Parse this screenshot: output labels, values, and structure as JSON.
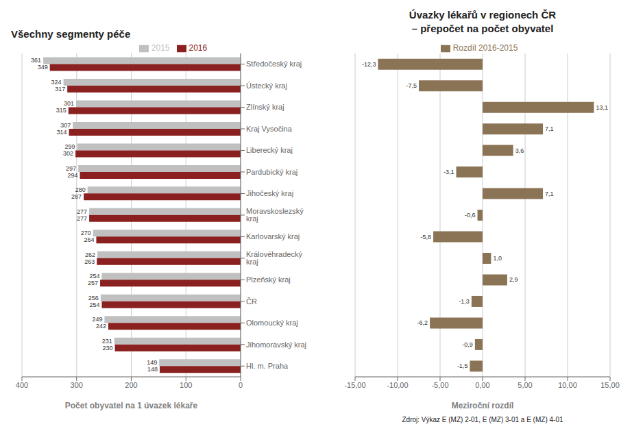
{
  "chart_data": [
    {
      "type": "bar",
      "orientation": "horizontal",
      "title": "Všechny segmenty péče",
      "categories": [
        "Středočeský kraj",
        "Ústecký kraj",
        "Zlínský kraj",
        "Kraj Vysočina",
        "Liberecký kraj",
        "Pardubický kraj",
        "Jihočeský kraj",
        "Moravskoslezský kraj",
        "Karlovarský kraj",
        "Královéhradecký kraj",
        "Plzeňský kraj",
        "ČR",
        "Olomoucký kraj",
        "Jihomoravský kraj",
        "Hl. m. Praha"
      ],
      "series": [
        {
          "name": "2015",
          "color": "#c0c0c0",
          "values": [
            361,
            324,
            301,
            307,
            299,
            297,
            280,
            277,
            270,
            262,
            254,
            256,
            249,
            231,
            149
          ]
        },
        {
          "name": "2016",
          "color": "#8b2020",
          "values": [
            349,
            317,
            315,
            314,
            302,
            294,
            287,
            277,
            264,
            263,
            257,
            254,
            242,
            230,
            148
          ]
        }
      ],
      "xlabel": "Počet obyvatel na 1 úvazek lékaře",
      "xlim": [
        400,
        0
      ],
      "xticks": [
        400,
        300,
        200,
        100,
        0
      ],
      "grid": true,
      "legend": "top",
      "data_labels": true
    },
    {
      "type": "bar",
      "orientation": "horizontal",
      "title": "Úvazky lékařů v regionech ČR",
      "subtitle": "– přepočet na počet obyvatel",
      "categories": [
        "Středočeský kraj",
        "Ústecký kraj",
        "Zlínský kraj",
        "Kraj Vysočina",
        "Liberecký kraj",
        "Pardubický kraj",
        "Jihočeský kraj",
        "Moravskoslezský kraj",
        "Karlovarský kraj",
        "Královéhradecký kraj",
        "Plzeňský kraj",
        "ČR",
        "Olomoucký kraj",
        "Jihomoravský kraj",
        "Hl. m. Praha"
      ],
      "series": [
        {
          "name": "Rozdíl 2016-2015",
          "color": "#8b7355",
          "values": [
            -12.3,
            -7.5,
            13.1,
            7.1,
            3.6,
            -3.1,
            7.1,
            -0.6,
            -5.8,
            1.0,
            2.9,
            -1.3,
            -6.2,
            -0.9,
            -1.5
          ],
          "value_labels": [
            "-12,3",
            "-7,5",
            "13,1",
            "7,1",
            "3,6",
            "-3,1",
            "7,1",
            "-0,6",
            "-5,8",
            "1,0",
            "2,9",
            "-1,3",
            "-6,2",
            "-0,9",
            "-1,5"
          ]
        }
      ],
      "xlabel": "Meziroční rozdíl",
      "xlim": [
        -15,
        15
      ],
      "xticks": [
        {
          "value": -15,
          "label": "-15,00"
        },
        {
          "value": -10,
          "label": "-10,00"
        },
        {
          "value": -5,
          "label": "-5,00"
        },
        {
          "value": 0,
          "label": "0,00"
        },
        {
          "value": 5,
          "label": "5,00"
        },
        {
          "value": 10,
          "label": "10,00"
        },
        {
          "value": 15,
          "label": "15,00"
        }
      ],
      "grid": true,
      "legend": "top",
      "data_labels": true,
      "tick_labels": "x",
      "annotations": [
        "Zdroj: Výkaz E (MZ) 2-01, E (MZ) 3-01 a E (MZ) 4-01"
      ]
    }
  ]
}
